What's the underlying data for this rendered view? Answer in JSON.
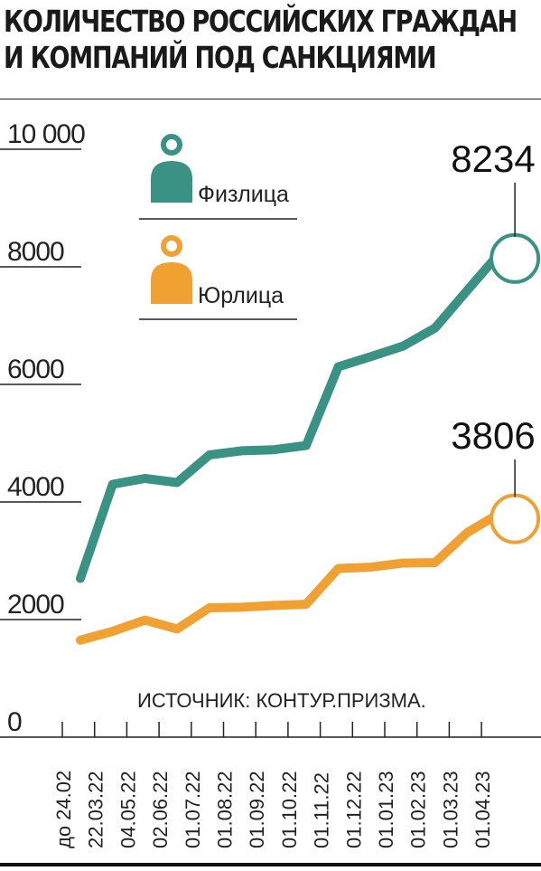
{
  "title": {
    "line1": "Количество российских граждан",
    "line2": "и компаний под санкциями"
  },
  "source": "ИСТОЧНИК: КОНТУР.ПРИЗМА.",
  "colors": {
    "individuals": "#3a9285",
    "companies": "#f0a132"
  },
  "legend": {
    "individuals": {
      "label": "Физлица",
      "icon": "person-icon"
    },
    "companies": {
      "label": "Юрлица",
      "icon": "person-icon"
    }
  },
  "chart_data": {
    "type": "line",
    "title": "Количество российских граждан и компаний под санкциями",
    "x": [
      "до 24.02",
      "22.03.22",
      "04.05.22",
      "02.06.22",
      "01.07.22",
      "01.08.22",
      "01.09.22",
      "01.10.22",
      "01.11.22",
      "01.12.22",
      "01.01.23",
      "01.02.23",
      "01.03.23",
      "01.04.23"
    ],
    "yticks": [
      "0",
      "2000",
      "4000",
      "6000",
      "8000",
      "10 000"
    ],
    "ylim": [
      0,
      10000
    ],
    "series": [
      {
        "name": "Физлица",
        "color": "#3a9285",
        "values": [
          2700,
          4300,
          4400,
          4330,
          4800,
          4870,
          4890,
          4960,
          6300,
          6470,
          6650,
          6960,
          7600,
          8234
        ]
      },
      {
        "name": "Юрлица",
        "color": "#f0a132",
        "values": [
          1650,
          1800,
          1990,
          1840,
          2200,
          2210,
          2240,
          2260,
          2870,
          2890,
          2960,
          2970,
          3480,
          3806
        ]
      }
    ],
    "end_labels": [
      "8234",
      "3806"
    ],
    "grid": false,
    "legend_position": "top-left"
  }
}
